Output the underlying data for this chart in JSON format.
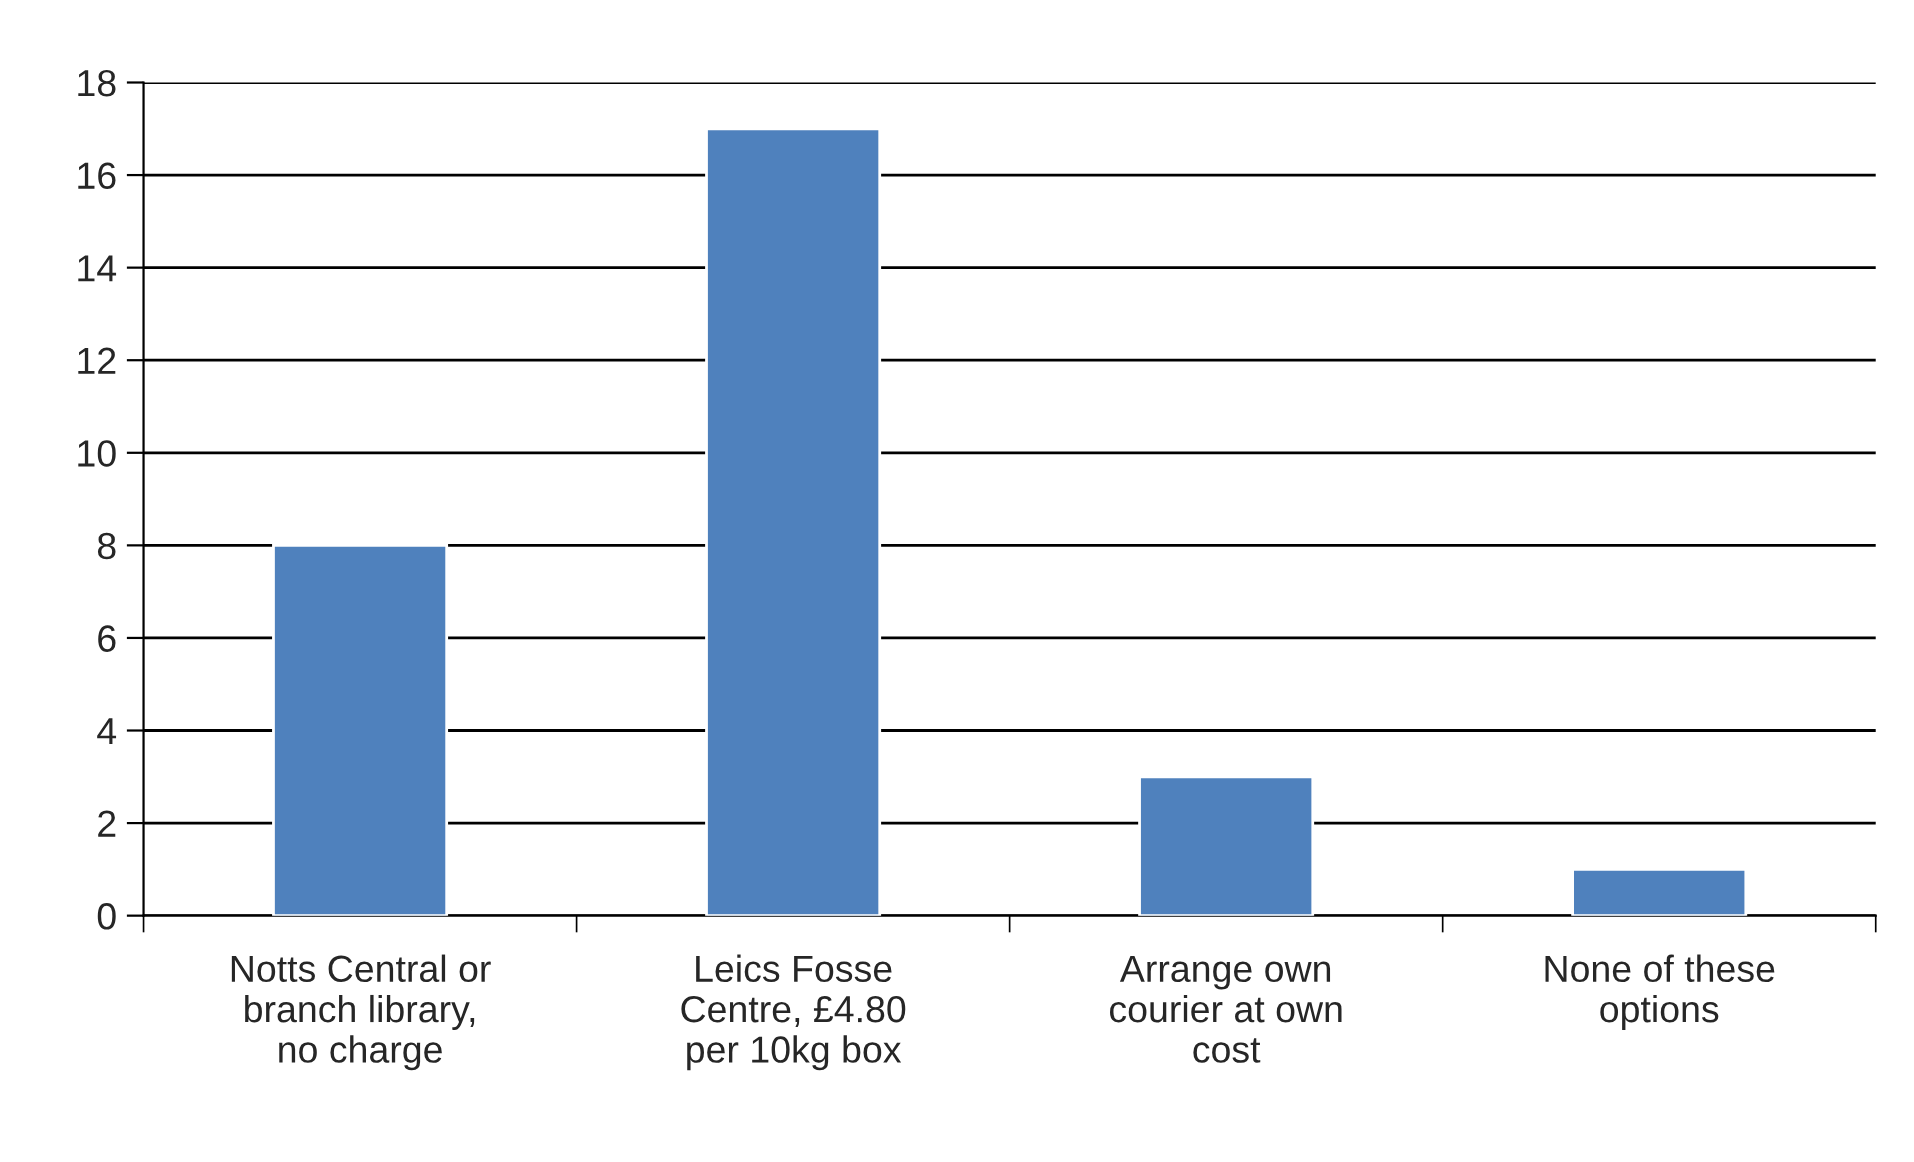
{
  "chart_data": {
    "type": "bar",
    "categories": [
      "Notts Central or\nbranch library,\nno charge",
      "Leics Fosse\nCentre, £4.80\nper 10kg box",
      "Arrange own\ncourier at own\ncost",
      "None of these\noptions"
    ],
    "values": [
      8,
      17,
      3,
      1
    ],
    "color": "#4f81bd",
    "ylim": [
      0,
      18
    ],
    "yticks": [
      0,
      2,
      4,
      6,
      8,
      10,
      12,
      14,
      16,
      18
    ],
    "grid": "y",
    "legend": false
  }
}
